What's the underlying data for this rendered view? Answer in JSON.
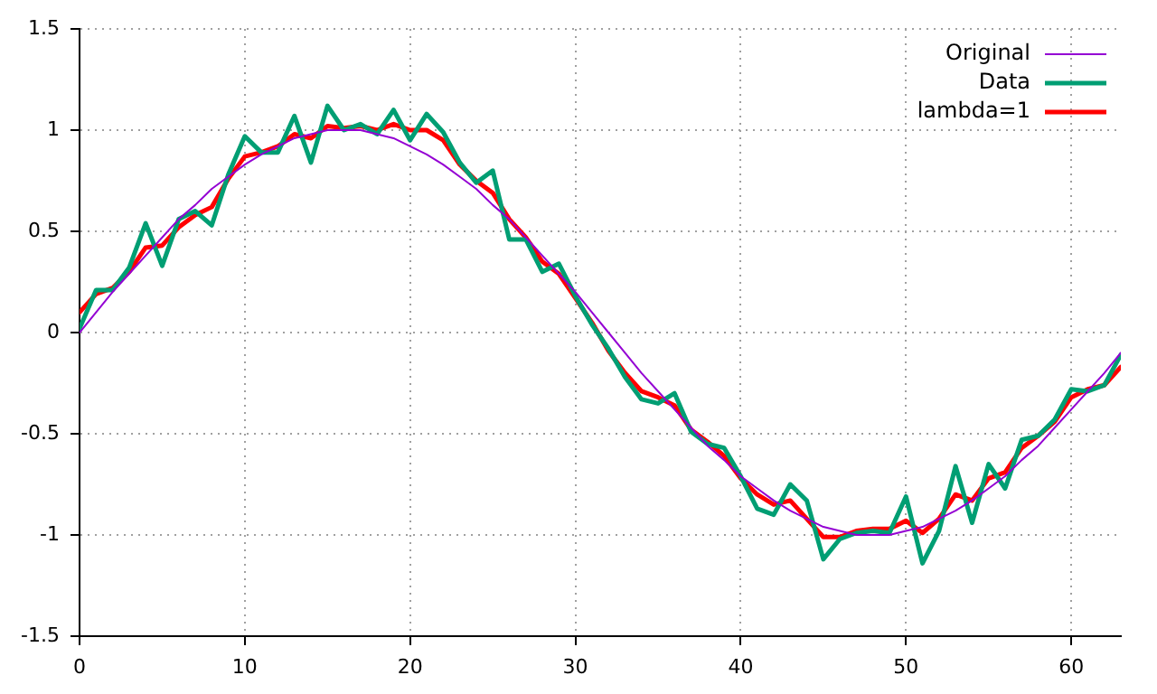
{
  "chart_data": {
    "type": "line",
    "xlim": [
      0,
      63
    ],
    "xticks": [
      0,
      10,
      20,
      30,
      40,
      50,
      60
    ],
    "ylim": [
      -1.5,
      1.5
    ],
    "yticks": [
      -1.5,
      -1,
      -0.5,
      0,
      0.5,
      1,
      1.5
    ],
    "grid": true,
    "legend": "top right",
    "marker": "none",
    "line_style": "solid",
    "x": [
      0,
      1,
      2,
      3,
      4,
      5,
      6,
      7,
      8,
      9,
      10,
      11,
      12,
      13,
      14,
      15,
      16,
      17,
      18,
      19,
      20,
      21,
      22,
      23,
      24,
      25,
      26,
      27,
      28,
      29,
      30,
      31,
      32,
      33,
      34,
      35,
      36,
      37,
      38,
      39,
      40,
      41,
      42,
      43,
      44,
      45,
      46,
      47,
      48,
      49,
      50,
      51,
      52,
      53,
      54,
      55,
      56,
      57,
      58,
      59,
      60,
      61,
      62,
      63
    ],
    "series": [
      {
        "name": "Original",
        "color": "#9400d3",
        "values": [
          0,
          0.1,
          0.2,
          0.29,
          0.38,
          0.47,
          0.56,
          0.63,
          0.71,
          0.77,
          0.83,
          0.88,
          0.92,
          0.96,
          0.98,
          1,
          1,
          1,
          0.98,
          0.96,
          0.92,
          0.88,
          0.83,
          0.77,
          0.71,
          0.63,
          0.56,
          0.47,
          0.38,
          0.29,
          0.2,
          0.1,
          0,
          -0.1,
          -0.2,
          -0.29,
          -0.38,
          -0.47,
          -0.56,
          -0.63,
          -0.71,
          -0.77,
          -0.83,
          -0.88,
          -0.92,
          -0.96,
          -0.98,
          -1,
          -1,
          -1,
          -0.98,
          -0.96,
          -0.92,
          -0.88,
          -0.83,
          -0.77,
          -0.71,
          -0.63,
          -0.56,
          -0.47,
          -0.38,
          -0.29,
          -0.2,
          -0.1
        ]
      },
      {
        "name": "Data",
        "color": "#009e73",
        "values": [
          0.02,
          0.21,
          0.21,
          0.32,
          0.54,
          0.33,
          0.56,
          0.6,
          0.53,
          0.78,
          0.97,
          0.89,
          0.89,
          1.07,
          0.84,
          1.12,
          1,
          1.03,
          0.98,
          1.1,
          0.95,
          1.08,
          0.99,
          0.84,
          0.74,
          0.8,
          0.46,
          0.46,
          0.3,
          0.34,
          0.18,
          0.04,
          -0.08,
          -0.22,
          -0.33,
          -0.35,
          -0.3,
          -0.49,
          -0.55,
          -0.57,
          -0.71,
          -0.87,
          -0.9,
          -0.75,
          -0.83,
          -1.12,
          -1.02,
          -0.99,
          -0.98,
          -0.99,
          -0.81,
          -1.14,
          -0.98,
          -0.66,
          -0.94,
          -0.65,
          -0.77,
          -0.53,
          -0.51,
          -0.43,
          -0.28,
          -0.29,
          -0.26,
          -0.11
        ]
      },
      {
        "name": "lambda=1",
        "color": "#ff0000",
        "values": [
          0.1,
          0.19,
          0.22,
          0.3,
          0.42,
          0.43,
          0.52,
          0.58,
          0.62,
          0.76,
          0.87,
          0.89,
          0.92,
          0.98,
          0.96,
          1.02,
          1.01,
          1.02,
          1,
          1.03,
          1,
          1,
          0.95,
          0.83,
          0.75,
          0.69,
          0.56,
          0.47,
          0.35,
          0.29,
          0.17,
          0.05,
          -0.09,
          -0.2,
          -0.29,
          -0.32,
          -0.36,
          -0.48,
          -0.54,
          -0.61,
          -0.72,
          -0.8,
          -0.85,
          -0.83,
          -0.92,
          -1.01,
          -1.01,
          -0.98,
          -0.97,
          -0.97,
          -0.93,
          -0.99,
          -0.92,
          -0.8,
          -0.83,
          -0.72,
          -0.69,
          -0.57,
          -0.51,
          -0.44,
          -0.32,
          -0.28,
          -0.26,
          -0.17
        ]
      }
    ]
  }
}
